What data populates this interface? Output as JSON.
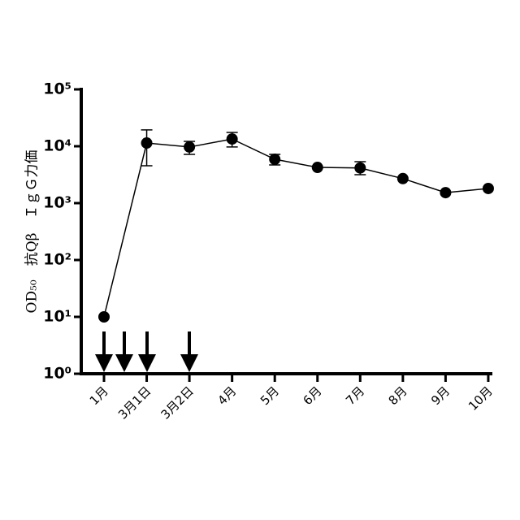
{
  "chart_data": {
    "type": "line",
    "categories": [
      "1月",
      "3月1日",
      "3月2日",
      "4月",
      "5月",
      "6月",
      "7月",
      "8月",
      "9月",
      "10月"
    ],
    "y_label": "OD₅₀　抗Qβ　ＩｇＧ力価",
    "log_y": true,
    "ylim": [
      1,
      100000
    ],
    "yticks": [
      {
        "value": 1,
        "label": "10⁰"
      },
      {
        "value": 10,
        "label": "10¹"
      },
      {
        "value": 100,
        "label": "10²"
      },
      {
        "value": 1000,
        "label": "10³"
      },
      {
        "value": 10000,
        "label": "10⁴"
      },
      {
        "value": 100000,
        "label": "10⁵"
      }
    ],
    "color": "#000000",
    "values": [
      10,
      11400,
      9700,
      13400,
      5900,
      4250,
      4150,
      2700,
      1530,
      1810
    ],
    "lower": [
      null,
      4550,
      7200,
      9700,
      4700,
      null,
      3160,
      null,
      null,
      null
    ],
    "upper": [
      null,
      19400,
      12200,
      17500,
      7200,
      null,
      5350,
      null,
      null,
      null
    ]
  }
}
